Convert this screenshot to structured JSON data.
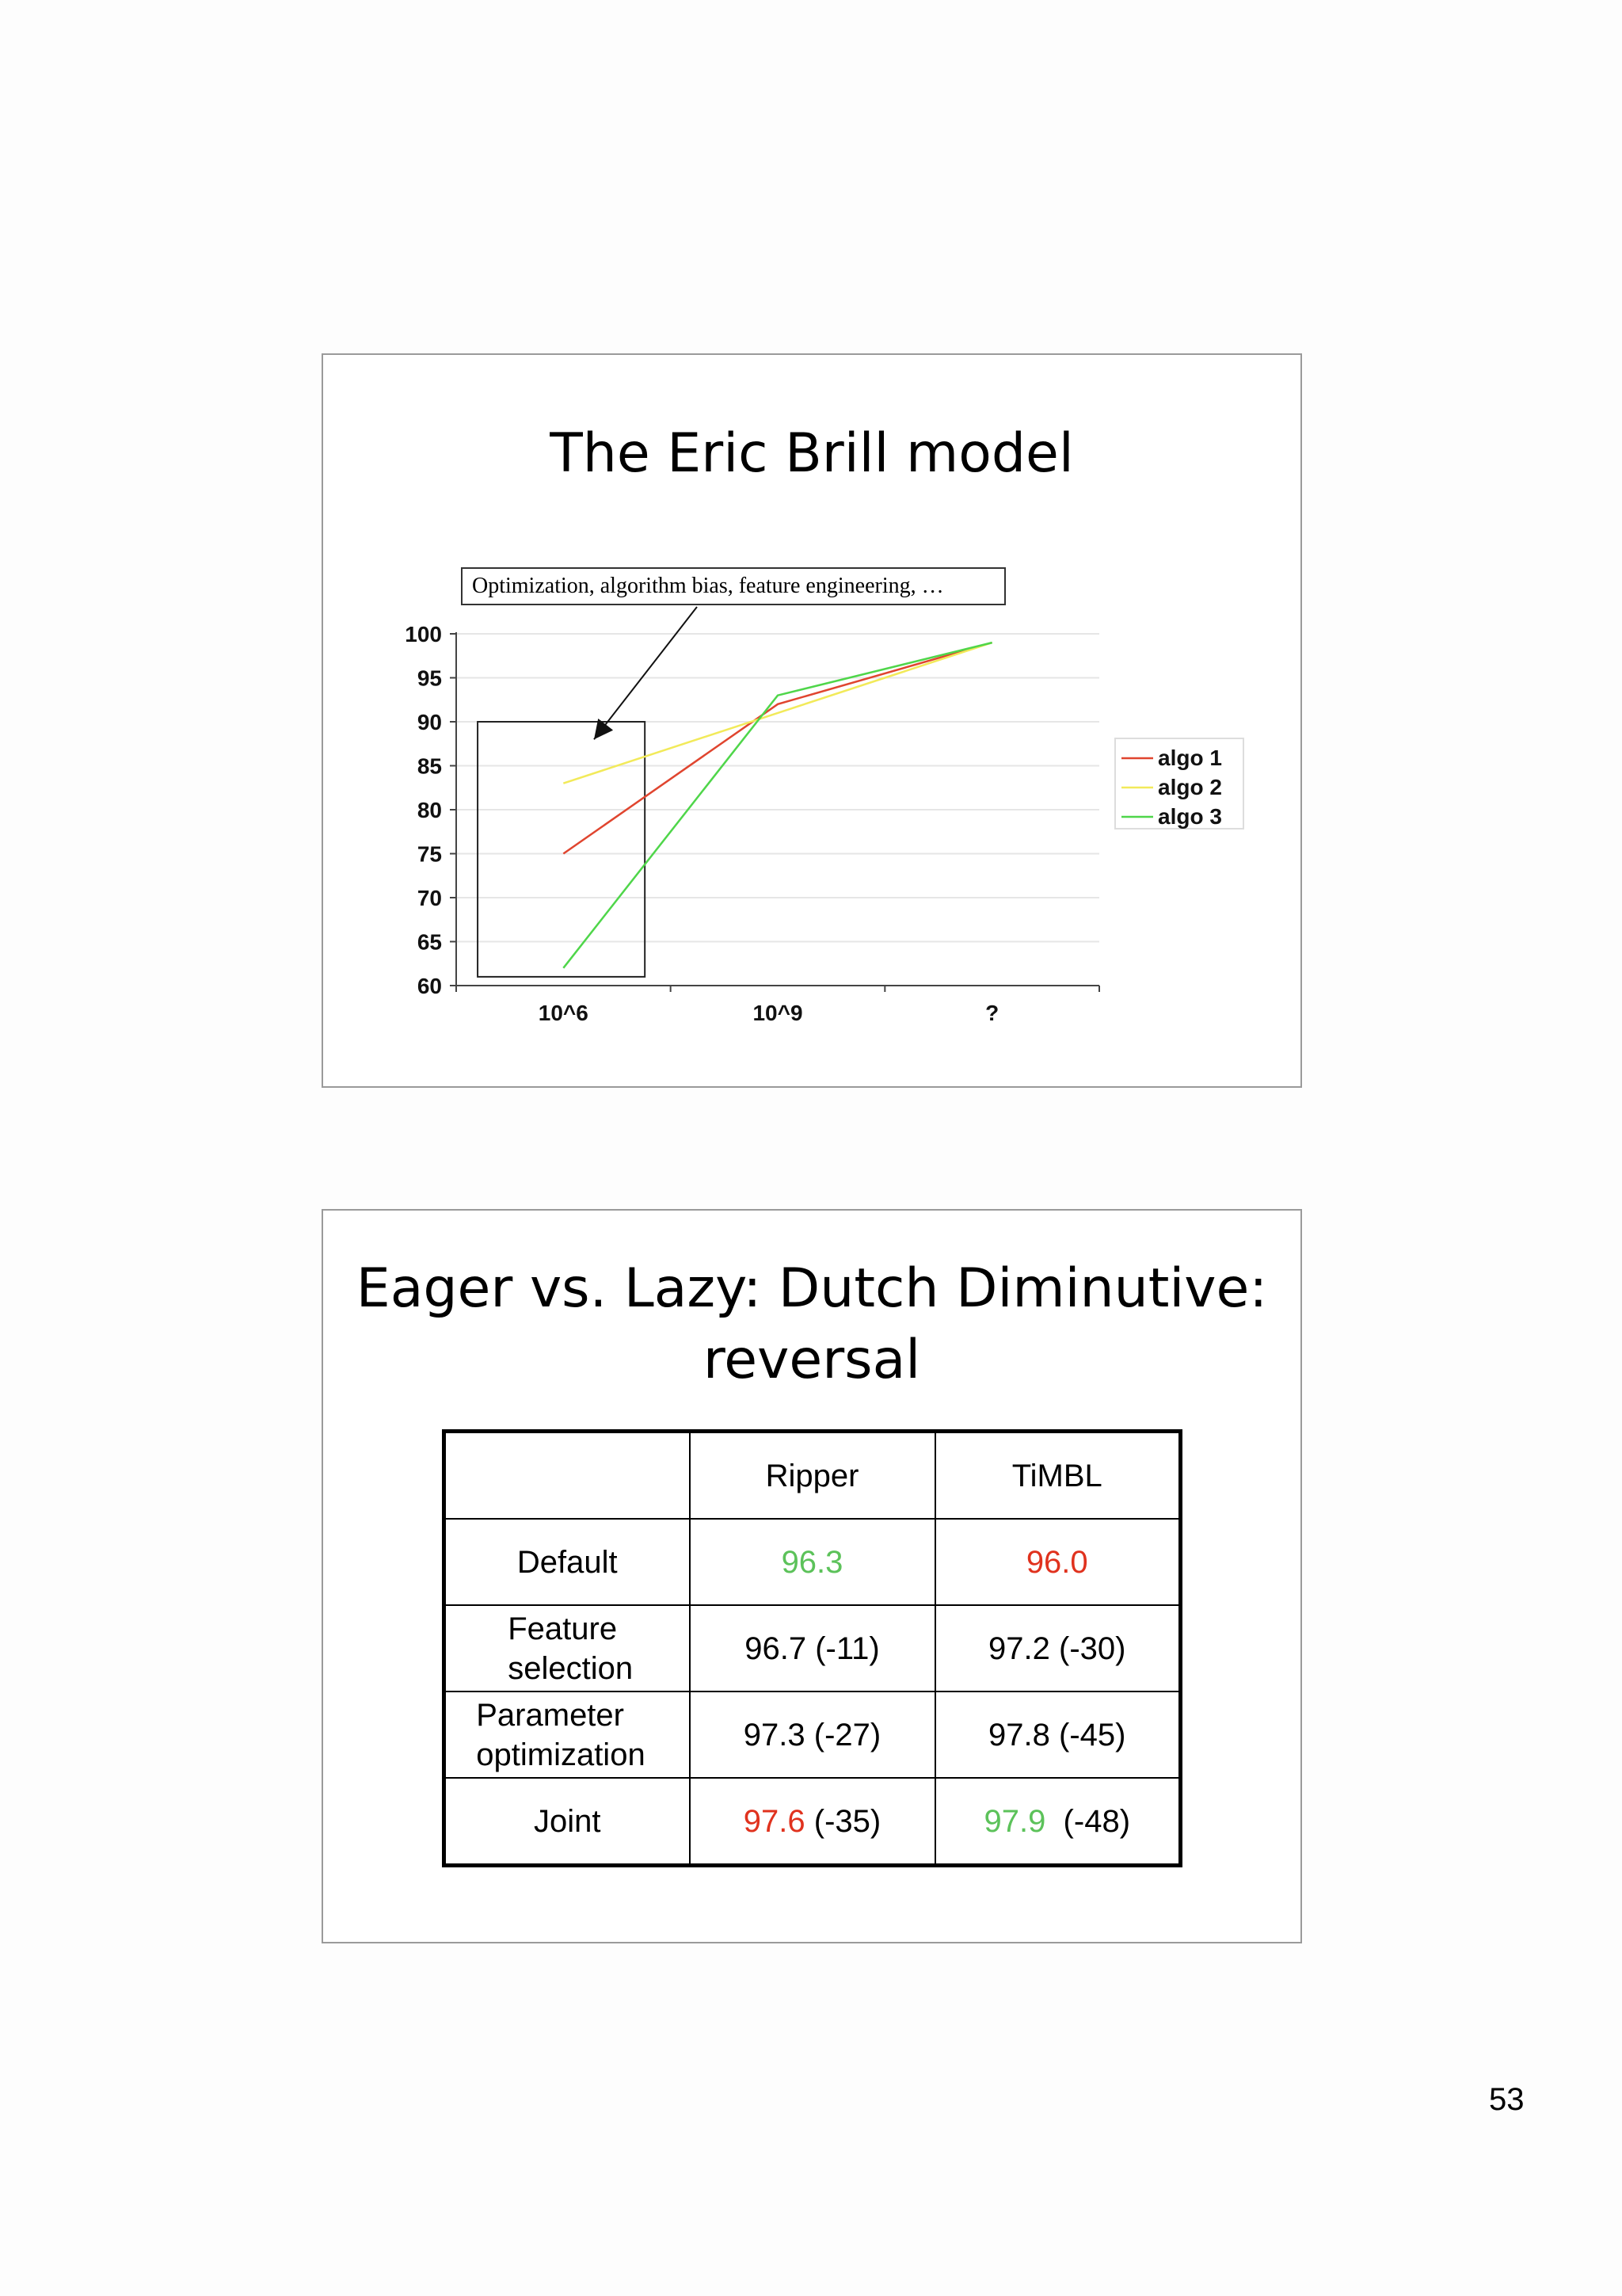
{
  "slide1": {
    "title": "The Eric Brill model",
    "annotation": "Optimization, algorithm bias, feature engineering, …"
  },
  "chart_data": {
    "type": "line",
    "categories": [
      "10^6",
      "10^9",
      "?"
    ],
    "series": [
      {
        "name": "algo 1",
        "color": "#e0452f",
        "values": [
          75,
          92,
          99
        ]
      },
      {
        "name": "algo 2",
        "color": "#f2ea5a",
        "values": [
          83,
          91,
          99
        ]
      },
      {
        "name": "algo 3",
        "color": "#4fd64a",
        "values": [
          62,
          93,
          99
        ]
      }
    ],
    "ylim": [
      60,
      100
    ],
    "yticks": [
      100,
      95,
      90,
      85,
      80,
      75,
      70,
      65,
      60
    ],
    "grid": true,
    "legend": "right",
    "highlight_box_y": [
      61,
      90
    ]
  },
  "slide2": {
    "title_line1": "Eager vs. Lazy: Dutch Diminutive:",
    "title_line2": "reversal"
  },
  "table": {
    "headers": [
      "",
      "Ripper",
      "TiMBL"
    ],
    "rows": [
      {
        "label": "Default",
        "ripper": "96.3",
        "ripper_suffix": "",
        "timbl": "96.0",
        "timbl_suffix": ""
      },
      {
        "label": "Feature selection",
        "ripper": "96.7 (-11)",
        "ripper_suffix": "",
        "timbl": "97.2 (-30)",
        "timbl_suffix": ""
      },
      {
        "label": "Parameter optimization",
        "ripper": "97.3 (-27)",
        "ripper_suffix": "",
        "timbl": "97.8 (-45)",
        "timbl_suffix": ""
      },
      {
        "label": "Joint",
        "ripper": "97.6",
        "ripper_suffix": " (-35)",
        "timbl": "97.9",
        "timbl_suffix": "  (-48)"
      }
    ]
  },
  "colors": {
    "green": "#5cc25a",
    "red": "#e0321e"
  },
  "page_number": "53"
}
